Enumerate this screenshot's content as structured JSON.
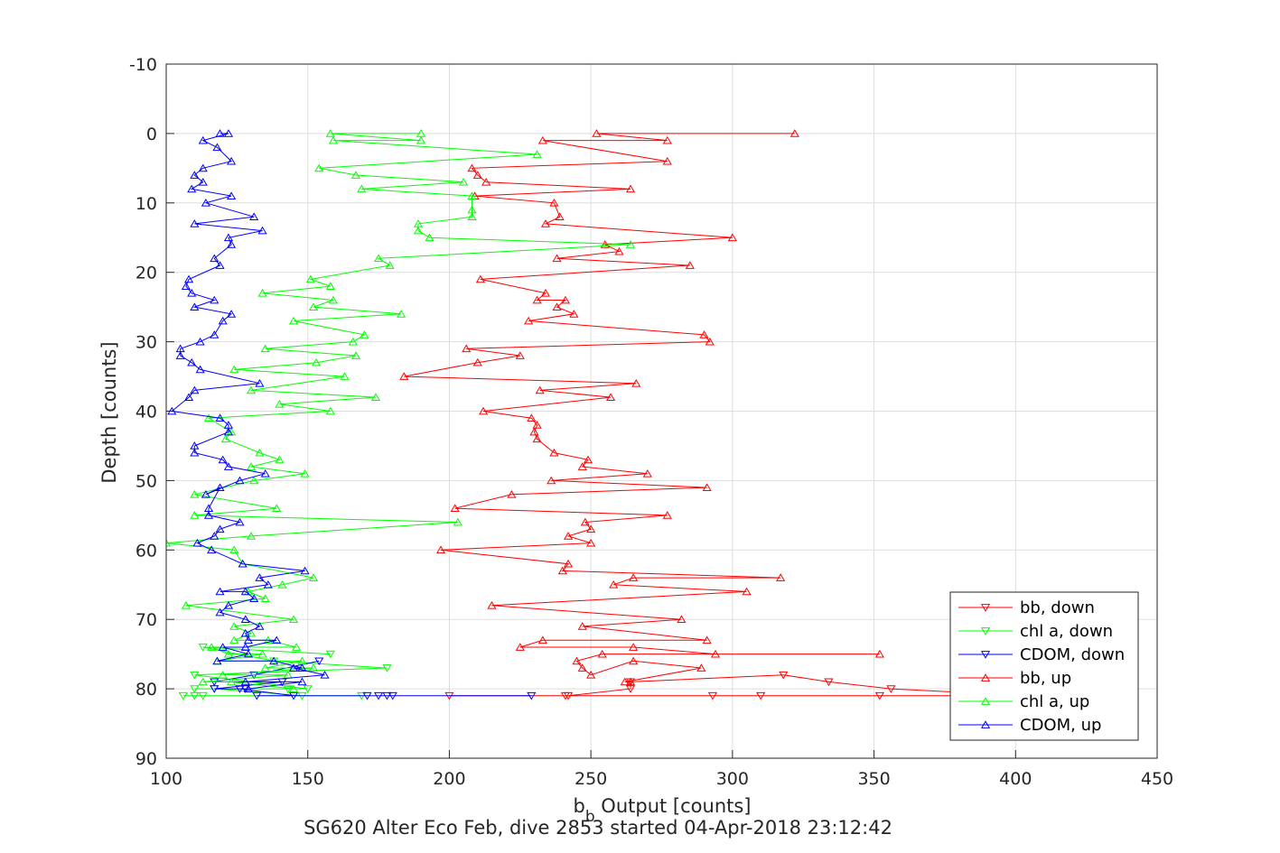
{
  "chart_data": {
    "type": "line",
    "title": "",
    "subtitle_text": "SG620 Alter Eco Feb, dive 2853 started 04-Apr-2018 23:12:42",
    "xlabel": {
      "main": "b",
      "sub": "b",
      "rest": " Output [counts]"
    },
    "ylabel": "Depth [counts]",
    "xlim": [
      100,
      450
    ],
    "ylim": [
      -10,
      90
    ],
    "y_reversed": true,
    "grid": true,
    "legend_position": "bottom-right",
    "xticks": [
      "100",
      "150",
      "200",
      "250",
      "300",
      "350",
      "400",
      "450"
    ],
    "yticks": [
      "-10",
      "0",
      "10",
      "20",
      "30",
      "40",
      "50",
      "60",
      "70",
      "80",
      "90"
    ],
    "series": [
      {
        "name": "bb, down",
        "color": "#ff0000",
        "marker": "down",
        "points": [
          [
            242,
            81
          ],
          [
            264,
            80
          ],
          [
            264,
            79
          ],
          [
            318,
            78
          ],
          [
            334,
            79
          ],
          [
            356,
            80
          ],
          [
            405,
            81
          ],
          [
            352,
            81
          ],
          [
            310,
            81
          ],
          [
            293,
            81
          ],
          [
            241,
            81
          ],
          [
            200,
            81
          ]
        ]
      },
      {
        "name": "chl a, down",
        "color": "#00ff00",
        "marker": "down",
        "points": [
          [
            158,
            75
          ],
          [
            113,
            74
          ],
          [
            138,
            76
          ],
          [
            178,
            77
          ],
          [
            110,
            78
          ],
          [
            150,
            80
          ],
          [
            110,
            80
          ],
          [
            143,
            80
          ],
          [
            117,
            80
          ],
          [
            148,
            81
          ],
          [
            110,
            81
          ],
          [
            106,
            81
          ],
          [
            113,
            81
          ],
          [
            169,
            81
          ]
        ]
      },
      {
        "name": "CDOM, down",
        "color": "#0000ff",
        "marker": "down",
        "points": [
          [
            154,
            76
          ],
          [
            131,
            78
          ],
          [
            117,
            79
          ],
          [
            141,
            79
          ],
          [
            117,
            80
          ],
          [
            128,
            80
          ],
          [
            126,
            80
          ],
          [
            145,
            81
          ],
          [
            132,
            81
          ],
          [
            175,
            81
          ],
          [
            178,
            81
          ],
          [
            180,
            81
          ],
          [
            171,
            81
          ],
          [
            229,
            81
          ]
        ]
      },
      {
        "name": "bb, up",
        "color": "#ff0000",
        "marker": "up",
        "points": [
          [
            322,
            0
          ],
          [
            252,
            0
          ],
          [
            277,
            1
          ],
          [
            233,
            1
          ],
          [
            277,
            4
          ],
          [
            208,
            5
          ],
          [
            210,
            6
          ],
          [
            213,
            7
          ],
          [
            264,
            8
          ],
          [
            209,
            9
          ],
          [
            237,
            10
          ],
          [
            239,
            12
          ],
          [
            234,
            13
          ],
          [
            300,
            15
          ],
          [
            255,
            16
          ],
          [
            260,
            17
          ],
          [
            238,
            18
          ],
          [
            285,
            19
          ],
          [
            211,
            21
          ],
          [
            234,
            23
          ],
          [
            231,
            24
          ],
          [
            241,
            24
          ],
          [
            238,
            25
          ],
          [
            244,
            26
          ],
          [
            228,
            27
          ],
          [
            290,
            29
          ],
          [
            292,
            30
          ],
          [
            206,
            31
          ],
          [
            225,
            32
          ],
          [
            210,
            33
          ],
          [
            184,
            35
          ],
          [
            266,
            36
          ],
          [
            232,
            37
          ],
          [
            257,
            38
          ],
          [
            212,
            40
          ],
          [
            229,
            41
          ],
          [
            231,
            42
          ],
          [
            230,
            43
          ],
          [
            231,
            44
          ],
          [
            237,
            46
          ],
          [
            249,
            47
          ],
          [
            247,
            48
          ],
          [
            270,
            49
          ],
          [
            236,
            50
          ],
          [
            291,
            51
          ],
          [
            222,
            52
          ],
          [
            202,
            54
          ],
          [
            277,
            55
          ],
          [
            248,
            56
          ],
          [
            250,
            57
          ],
          [
            242,
            58
          ],
          [
            250,
            59
          ],
          [
            197,
            60
          ],
          [
            242,
            62
          ],
          [
            240,
            63
          ],
          [
            317,
            64
          ],
          [
            265,
            64
          ],
          [
            258,
            65
          ],
          [
            305,
            66
          ],
          [
            215,
            68
          ],
          [
            282,
            70
          ],
          [
            247,
            71
          ],
          [
            291,
            73
          ],
          [
            233,
            73
          ],
          [
            225,
            74
          ],
          [
            265,
            74
          ],
          [
            294,
            75
          ],
          [
            352,
            75
          ],
          [
            254,
            75
          ],
          [
            245,
            76
          ],
          [
            247,
            77
          ],
          [
            250,
            78
          ],
          [
            265,
            76
          ],
          [
            289,
            77
          ],
          [
            262,
            79
          ],
          [
            264,
            79
          ]
        ]
      },
      {
        "name": "chl a, up",
        "color": "#00ff00",
        "marker": "up",
        "points": [
          [
            190,
            0
          ],
          [
            158,
            0
          ],
          [
            190,
            1
          ],
          [
            159,
            1
          ],
          [
            231,
            3
          ],
          [
            154,
            5
          ],
          [
            167,
            6
          ],
          [
            205,
            7
          ],
          [
            169,
            8
          ],
          [
            208,
            9
          ],
          [
            208,
            11
          ],
          [
            208,
            12
          ],
          [
            189,
            13
          ],
          [
            189,
            14
          ],
          [
            193,
            15
          ],
          [
            264,
            16
          ],
          [
            175,
            18
          ],
          [
            179,
            19
          ],
          [
            151,
            21
          ],
          [
            158,
            22
          ],
          [
            134,
            23
          ],
          [
            159,
            24
          ],
          [
            152,
            25
          ],
          [
            183,
            26
          ],
          [
            145,
            27
          ],
          [
            170,
            29
          ],
          [
            166,
            30
          ],
          [
            135,
            31
          ],
          [
            167,
            32
          ],
          [
            153,
            33
          ],
          [
            124,
            34
          ],
          [
            163,
            35
          ],
          [
            130,
            37
          ],
          [
            174,
            38
          ],
          [
            140,
            39
          ],
          [
            158,
            40
          ],
          [
            115,
            41
          ],
          [
            123,
            43
          ],
          [
            121,
            44
          ],
          [
            133,
            46
          ],
          [
            140,
            47
          ],
          [
            130,
            48
          ],
          [
            149,
            49
          ],
          [
            131,
            50
          ],
          [
            110,
            52
          ],
          [
            139,
            54
          ],
          [
            110,
            55
          ],
          [
            203,
            56
          ],
          [
            130,
            58
          ],
          [
            100,
            59
          ],
          [
            124,
            60
          ],
          [
            127,
            62
          ],
          [
            152,
            64
          ],
          [
            141,
            65
          ],
          [
            129,
            66
          ],
          [
            135,
            67
          ],
          [
            107,
            68
          ],
          [
            145,
            70
          ],
          [
            124,
            71
          ],
          [
            130,
            72
          ],
          [
            124,
            73
          ],
          [
            136,
            73
          ],
          [
            146,
            74
          ],
          [
            116,
            74
          ],
          [
            122,
            75
          ],
          [
            134,
            75
          ],
          [
            118,
            76
          ],
          [
            148,
            76
          ],
          [
            135,
            77
          ],
          [
            152,
            77
          ],
          [
            120,
            78
          ],
          [
            143,
            78
          ],
          [
            113,
            79
          ],
          [
            123,
            79
          ],
          [
            145,
            80
          ]
        ]
      },
      {
        "name": "CDOM, up",
        "color": "#0000ff",
        "marker": "up",
        "points": [
          [
            119,
            0
          ],
          [
            122,
            0
          ],
          [
            113,
            1
          ],
          [
            118,
            2
          ],
          [
            123,
            4
          ],
          [
            113,
            5
          ],
          [
            110,
            6
          ],
          [
            113,
            7
          ],
          [
            109,
            8
          ],
          [
            123,
            9
          ],
          [
            114,
            10
          ],
          [
            131,
            12
          ],
          [
            110,
            13
          ],
          [
            134,
            14
          ],
          [
            122,
            15
          ],
          [
            123,
            16
          ],
          [
            117,
            18
          ],
          [
            119,
            19
          ],
          [
            108,
            21
          ],
          [
            107,
            22
          ],
          [
            109,
            23
          ],
          [
            117,
            24
          ],
          [
            110,
            25
          ],
          [
            123,
            26
          ],
          [
            120,
            27
          ],
          [
            117,
            29
          ],
          [
            112,
            30
          ],
          [
            105,
            31
          ],
          [
            105,
            32
          ],
          [
            109,
            33
          ],
          [
            112,
            34
          ],
          [
            133,
            36
          ],
          [
            110,
            37
          ],
          [
            108,
            38
          ],
          [
            102,
            40
          ],
          [
            119,
            41
          ],
          [
            122,
            42
          ],
          [
            122,
            43
          ],
          [
            110,
            45
          ],
          [
            110,
            46
          ],
          [
            120,
            47
          ],
          [
            122,
            48
          ],
          [
            135,
            49
          ],
          [
            126,
            50
          ],
          [
            114,
            52
          ],
          [
            119,
            51
          ],
          [
            115,
            54
          ],
          [
            115,
            55
          ],
          [
            126,
            56
          ],
          [
            119,
            57
          ],
          [
            117,
            58
          ],
          [
            111,
            59
          ],
          [
            116,
            60
          ],
          [
            127,
            62
          ],
          [
            149,
            63
          ],
          [
            133,
            64
          ],
          [
            136,
            65
          ],
          [
            119,
            66
          ],
          [
            128,
            66
          ],
          [
            131,
            67
          ],
          [
            122,
            68
          ],
          [
            119,
            69
          ],
          [
            128,
            70
          ],
          [
            133,
            71
          ],
          [
            128,
            72
          ],
          [
            129,
            73
          ],
          [
            139,
            73
          ],
          [
            128,
            74
          ],
          [
            120,
            74
          ],
          [
            129,
            75
          ],
          [
            118,
            76
          ],
          [
            138,
            76
          ],
          [
            148,
            77
          ],
          [
            145,
            77
          ],
          [
            156,
            78
          ],
          [
            128,
            79
          ],
          [
            148,
            79
          ],
          [
            129,
            80
          ]
        ]
      }
    ]
  }
}
